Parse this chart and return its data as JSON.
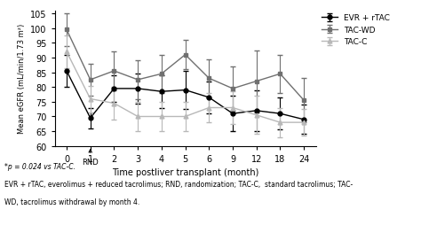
{
  "x_positions": [
    0,
    1,
    2,
    3,
    4,
    5,
    6,
    7,
    8,
    9,
    10
  ],
  "x_labels": [
    "0",
    "1",
    "2",
    "3",
    "4",
    "5",
    "6",
    "9",
    "12",
    "18",
    "24"
  ],
  "evr_rtac_y": [
    85.5,
    69.5,
    79.5,
    79.5,
    78.5,
    79.0,
    76.5,
    71.0,
    72.0,
    71.0,
    69.0
  ],
  "evr_rtac_err": [
    5.5,
    3.5,
    4.5,
    5.0,
    5.5,
    6.5,
    5.5,
    6.0,
    7.0,
    5.5,
    5.0
  ],
  "tac_wd_y": [
    99.5,
    82.5,
    85.5,
    82.5,
    84.5,
    91.0,
    83.0,
    79.5,
    82.0,
    84.5,
    75.5
  ],
  "tac_wd_err": [
    5.5,
    5.5,
    6.5,
    6.5,
    6.5,
    5.0,
    6.5,
    7.5,
    10.5,
    6.5,
    7.5
  ],
  "tac_c_y": [
    92.0,
    76.0,
    74.5,
    70.0,
    70.0,
    70.0,
    73.0,
    73.0,
    70.5,
    68.0,
    68.0
  ],
  "tac_c_err": [
    5.5,
    4.5,
    5.5,
    5.0,
    5.0,
    5.0,
    5.0,
    5.5,
    6.5,
    5.0,
    4.5
  ],
  "evr_color": "#000000",
  "tac_wd_color": "#707070",
  "tac_c_color": "#b8b8b8",
  "xlabel": "Time postliver transplant (month)",
  "ylabel": "Mean eGFR (mL/min/1.73 m²)",
  "ylim": [
    60,
    106
  ],
  "yticks": [
    60,
    65,
    70,
    75,
    80,
    85,
    90,
    95,
    100,
    105
  ],
  "legend_labels": [
    "EVR + rTAC",
    "TAC-WD",
    "TAC-C"
  ],
  "footnote1": "*p = 0.024 vs TAC-C.",
  "footnote2": "EVR + rTAC, everolimus + reduced tacrolimus; RND, randomization; TAC-C,  standard tacrolimus; TAC-",
  "footnote3": "WD, tacrolimus withdrawal by month 4."
}
